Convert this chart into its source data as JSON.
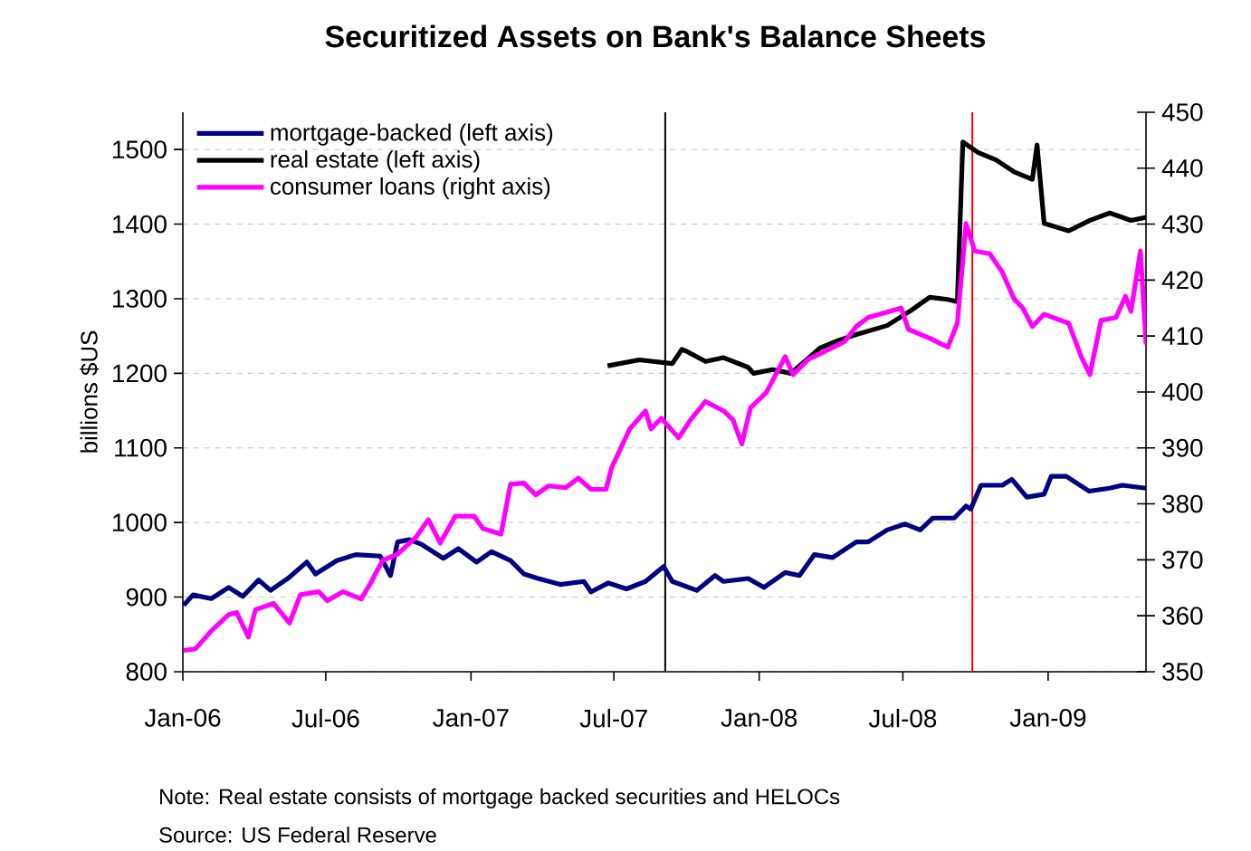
{
  "chart_data": {
    "type": "line",
    "title": "Securitized Assets on Bank's Balance Sheets",
    "ylabel": "billions $US",
    "annotations": [
      "Note: Real estate consists of mortgage  backed securities and HELOCs",
      "Source: US Federal Reserve"
    ],
    "xlim": [
      "2006-01-01",
      "2009-05-05"
    ],
    "xticks": [
      {
        "value": "2006-01-01",
        "label": "Jan-06"
      },
      {
        "value": "2006-07-01",
        "label": "Jul-06"
      },
      {
        "value": "2007-01-01",
        "label": "Jan-07"
      },
      {
        "value": "2007-07-01",
        "label": "Jul-07"
      },
      {
        "value": "2008-01-01",
        "label": "Jan-08"
      },
      {
        "value": "2008-07-01",
        "label": "Jul-08"
      },
      {
        "value": "2009-01-01",
        "label": "Jan-09"
      }
    ],
    "ylim": [
      800,
      1550
    ],
    "yticks": [
      800,
      900,
      1000,
      1100,
      1200,
      1300,
      1400,
      1500
    ],
    "y2lim": [
      350,
      450
    ],
    "y2ticks": [
      350,
      360,
      370,
      380,
      390,
      400,
      410,
      420,
      430,
      440,
      450
    ],
    "grid": "y",
    "legend": "top left",
    "ref_lines": [
      {
        "axis": "x",
        "value": "2007-09-04",
        "color": "#000000"
      },
      {
        "axis": "x",
        "value": "2008-09-27",
        "color": "#ff0000"
      }
    ],
    "series": [
      {
        "name": "mortgage-backed (left axis)",
        "color": "#000080",
        "x": [
          "2006-01-02",
          "2006-01-14",
          "2006-02-06",
          "2006-02-28",
          "2006-03-18",
          "2006-04-07",
          "2006-04-22",
          "2006-05-14",
          "2006-06-07",
          "2006-06-18",
          "2006-07-15",
          "2006-08-08",
          "2006-09-08",
          "2006-09-21",
          "2006-09-30",
          "2006-10-15",
          "2006-10-30",
          "2006-11-27",
          "2006-12-16",
          "2007-01-08",
          "2007-01-27",
          "2007-02-20",
          "2007-03-09",
          "2007-03-27",
          "2007-04-24",
          "2007-05-24",
          "2007-06-02",
          "2007-06-24",
          "2007-07-17",
          "2007-08-10",
          "2007-09-02",
          "2007-09-13",
          "2007-10-14",
          "2007-11-06",
          "2007-11-17",
          "2007-12-18",
          "2008-01-07",
          "2008-02-03",
          "2008-02-21",
          "2008-03-11",
          "2008-04-03",
          "2008-05-03",
          "2008-05-18",
          "2008-06-11",
          "2008-07-04",
          "2008-07-23",
          "2008-08-08",
          "2008-09-04",
          "2008-09-19",
          "2008-09-25",
          "2008-10-08",
          "2008-11-04",
          "2008-11-16",
          "2008-12-05",
          "2008-12-27",
          "2009-01-05",
          "2009-01-24",
          "2009-02-22",
          "2009-03-20",
          "2009-04-05",
          "2009-05-05"
        ],
        "values": [
          889,
          903,
          898,
          913,
          901,
          923,
          909,
          925,
          947,
          931,
          949,
          957,
          955,
          929,
          974,
          977,
          971,
          952,
          965,
          947,
          961,
          949,
          931,
          925,
          917,
          921,
          907,
          919,
          911,
          921,
          941,
          921,
          909,
          929,
          921,
          925,
          913,
          933,
          929,
          957,
          953,
          974,
          974,
          990,
          998,
          990,
          1006,
          1006,
          1022,
          1018,
          1050,
          1050,
          1058,
          1034,
          1038,
          1062,
          1062,
          1042,
          1046,
          1050,
          1046
        ]
      },
      {
        "name": "real estate (left axis)",
        "color": "#000000",
        "x": [
          "2007-06-23",
          "2007-08-02",
          "2007-09-13",
          "2007-09-25",
          "2007-10-02",
          "2007-10-25",
          "2007-11-17",
          "2007-12-18",
          "2007-12-25",
          "2008-01-18",
          "2008-02-10",
          "2008-03-03",
          "2008-03-18",
          "2008-04-10",
          "2008-05-03",
          "2008-06-11",
          "2008-07-11",
          "2008-08-04",
          "2008-08-27",
          "2008-09-08",
          "2008-09-15",
          "2008-10-04",
          "2008-10-27",
          "2008-11-19",
          "2008-12-12",
          "2008-12-18",
          "2008-12-27",
          "2009-01-27",
          "2009-02-23",
          "2009-03-20",
          "2009-04-16",
          "2009-05-05"
        ],
        "values": [
          1210,
          1218,
          1213,
          1232,
          1229,
          1216,
          1221,
          1208,
          1200,
          1205,
          1200,
          1220,
          1234,
          1244,
          1252,
          1264,
          1284,
          1302,
          1299,
          1296,
          1510,
          1496,
          1486,
          1470,
          1460,
          1506,
          1401,
          1391,
          1405,
          1415,
          1405,
          1409
        ]
      },
      {
        "name": "consumer loans (right axis)",
        "color": "#ff00ff",
        "axis": "y2",
        "x": [
          "2006-01-02",
          "2006-01-17",
          "2006-02-06",
          "2006-02-28",
          "2006-03-10",
          "2006-03-25",
          "2006-04-03",
          "2006-04-26",
          "2006-05-16",
          "2006-05-30",
          "2006-06-22",
          "2006-07-03",
          "2006-07-23",
          "2006-08-15",
          "2006-08-27",
          "2006-09-11",
          "2006-09-30",
          "2006-10-23",
          "2006-11-08",
          "2006-11-23",
          "2006-12-12",
          "2007-01-05",
          "2007-01-16",
          "2007-02-08",
          "2007-02-20",
          "2007-03-09",
          "2007-03-24",
          "2007-04-09",
          "2007-05-01",
          "2007-05-17",
          "2007-06-02",
          "2007-06-21",
          "2007-06-28",
          "2007-07-21",
          "2007-08-10",
          "2007-08-17",
          "2007-08-30",
          "2007-09-21",
          "2007-10-06",
          "2007-10-25",
          "2007-11-17",
          "2007-11-29",
          "2007-12-10",
          "2007-12-21",
          "2008-01-10",
          "2008-02-03",
          "2008-02-13",
          "2008-03-03",
          "2008-03-26",
          "2008-04-18",
          "2008-05-03",
          "2008-05-18",
          "2008-06-14",
          "2008-06-29",
          "2008-07-08",
          "2008-08-04",
          "2008-08-27",
          "2008-09-08",
          "2008-09-19",
          "2008-09-30",
          "2008-10-19",
          "2008-11-04",
          "2008-11-19",
          "2008-11-30",
          "2008-12-12",
          "2008-12-27",
          "2009-01-27",
          "2009-02-12",
          "2009-02-23",
          "2009-03-09",
          "2009-03-28",
          "2009-04-09",
          "2009-04-16",
          "2009-04-28",
          "2009-05-05"
        ],
        "values": [
          353.8,
          354.1,
          357.3,
          360.2,
          360.6,
          356.2,
          361.1,
          362.2,
          358.7,
          363.8,
          364.3,
          362.7,
          364.3,
          363.0,
          365.9,
          369.9,
          371.0,
          374.0,
          377.2,
          373.0,
          377.8,
          377.8,
          375.6,
          374.6,
          383.5,
          383.7,
          381.6,
          383.2,
          382.9,
          384.6,
          382.6,
          382.6,
          386.4,
          393.4,
          396.6,
          393.4,
          395.3,
          391.8,
          395.0,
          398.3,
          396.6,
          395.0,
          390.7,
          397.2,
          399.9,
          406.3,
          403.1,
          405.8,
          407.4,
          409.0,
          411.7,
          413.3,
          414.4,
          415.0,
          411.2,
          409.6,
          408.0,
          412.3,
          430.1,
          425.2,
          424.7,
          421.4,
          416.6,
          415.0,
          411.7,
          413.9,
          412.3,
          406.3,
          403.1,
          412.8,
          413.3,
          417.1,
          414.4,
          425.2,
          408.5
        ]
      }
    ]
  }
}
